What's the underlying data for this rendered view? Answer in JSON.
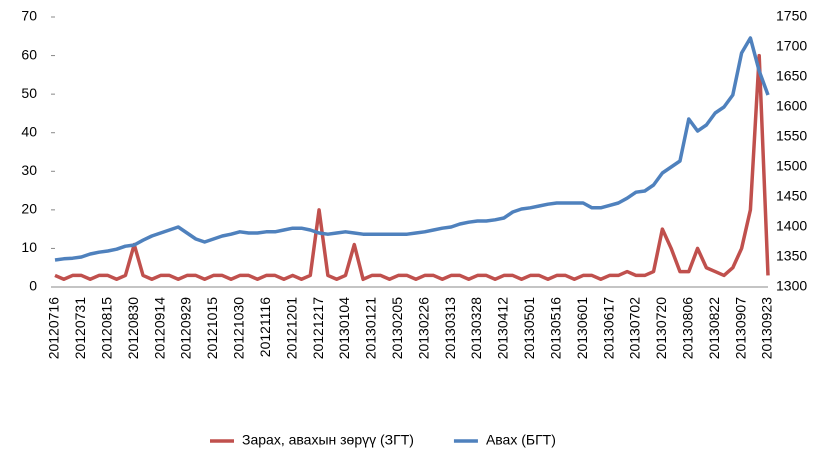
{
  "chart_data": {
    "type": "line",
    "categories": [
      "20120716",
      null,
      null,
      "20120731",
      null,
      null,
      "20120815",
      null,
      null,
      "20120830",
      null,
      null,
      "20120914",
      null,
      null,
      "20120929",
      null,
      null,
      "20121015",
      null,
      null,
      "20121030",
      null,
      null,
      "20121116",
      null,
      null,
      "20121201",
      null,
      null,
      "20121217",
      null,
      null,
      "20130104",
      null,
      null,
      "20130121",
      null,
      null,
      "20130205",
      null,
      null,
      "20130226",
      null,
      null,
      "20130313",
      null,
      null,
      "20130328",
      null,
      null,
      "20130412",
      null,
      null,
      "20130501",
      null,
      null,
      "20130516",
      null,
      null,
      "20130601",
      null,
      null,
      "20130617",
      null,
      null,
      "20130702",
      null,
      null,
      "20130720",
      null,
      null,
      "20130806",
      null,
      null,
      "20130822",
      null,
      null,
      "20130907",
      null,
      null,
      "20130923"
    ],
    "series": [
      {
        "name": "Зарах, авахын зөрүү (ЗГТ)",
        "color": "#c0504d",
        "values": [
          3,
          2,
          3,
          3,
          2,
          3,
          3,
          2,
          3,
          11,
          3,
          2,
          3,
          3,
          2,
          3,
          3,
          2,
          3,
          3,
          2,
          3,
          3,
          2,
          3,
          3,
          2,
          3,
          2,
          3,
          20,
          3,
          2,
          3,
          11,
          2,
          3,
          3,
          2,
          3,
          3,
          2,
          3,
          3,
          2,
          3,
          3,
          2,
          3,
          3,
          2,
          3,
          3,
          2,
          3,
          3,
          2,
          3,
          3,
          2,
          3,
          3,
          2,
          3,
          3,
          4,
          3,
          3,
          4,
          15,
          10,
          4,
          4,
          10,
          5,
          4,
          3,
          5,
          10,
          20,
          60,
          3
        ]
      },
      {
        "name": "Авах (БГТ)",
        "color": "#4f81bd",
        "axis": "y2",
        "values": [
          1345,
          1347,
          1348,
          1350,
          1355,
          1358,
          1360,
          1363,
          1368,
          1370,
          1378,
          1385,
          1390,
          1395,
          1400,
          1390,
          1380,
          1375,
          1380,
          1385,
          1388,
          1392,
          1390,
          1390,
          1392,
          1392,
          1395,
          1398,
          1398,
          1395,
          1390,
          1388,
          1390,
          1392,
          1390,
          1388,
          1388,
          1388,
          1388,
          1388,
          1388,
          1390,
          1392,
          1395,
          1398,
          1400,
          1405,
          1408,
          1410,
          1410,
          1412,
          1415,
          1425,
          1430,
          1432,
          1435,
          1438,
          1440,
          1440,
          1440,
          1440,
          1432,
          1432,
          1436,
          1440,
          1448,
          1458,
          1460,
          1470,
          1490,
          1500,
          1510,
          1580,
          1560,
          1570,
          1590,
          1600,
          1620,
          1690,
          1715,
          1660,
          1620
        ]
      }
    ],
    "ylim": [
      0,
      70
    ],
    "yticks": [
      0,
      10,
      20,
      30,
      40,
      50,
      60,
      70
    ],
    "y2lim": [
      1300,
      1750
    ],
    "y2ticks": [
      1300,
      1350,
      1400,
      1450,
      1500,
      1550,
      1600,
      1650,
      1700,
      1750
    ],
    "legend": "bottom"
  }
}
